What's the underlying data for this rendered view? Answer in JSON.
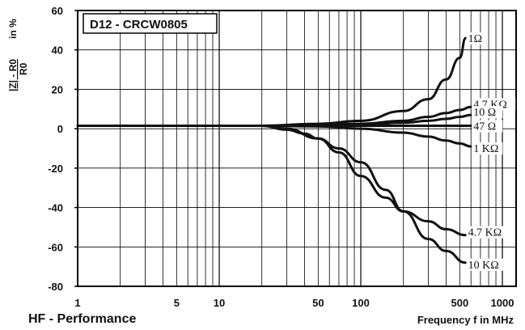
{
  "chart_data": {
    "type": "line",
    "title": "D12 - CRCW0805",
    "ylabel": "|Z| - R0 / R0 in %",
    "ylabel_numerator": "|Z| - R0",
    "ylabel_denominator": "R0",
    "ylabel_suffix": "in %",
    "xlabel": "Frequency f in MHz",
    "footer": "HF - Performance",
    "x_scale": "log",
    "xlim": [
      1,
      1250
    ],
    "ylim": [
      -80,
      60
    ],
    "grid": true,
    "x_ticks": [
      {
        "value": 1,
        "label": "1"
      },
      {
        "value": 5,
        "label": "5"
      },
      {
        "value": 10,
        "label": "10"
      },
      {
        "value": 50,
        "label": "50"
      },
      {
        "value": 100,
        "label": "100"
      },
      {
        "value": 500,
        "label": "500"
      },
      {
        "value": 1000,
        "label": "1000"
      }
    ],
    "y_ticks": [
      {
        "value": 60,
        "label": "60"
      },
      {
        "value": 40,
        "label": "40"
      },
      {
        "value": 20,
        "label": "20"
      },
      {
        "value": 0,
        "label": "0"
      },
      {
        "value": -20,
        "label": "-20"
      },
      {
        "value": -40,
        "label": "-40"
      },
      {
        "value": -60,
        "label": "-60"
      },
      {
        "value": -80,
        "label": "-80"
      }
    ],
    "series": [
      {
        "name": "1Ω",
        "x": [
          1,
          20,
          50,
          100,
          200,
          300,
          400,
          500,
          550
        ],
        "y": [
          1.5,
          1.5,
          2.5,
          4,
          9,
          15,
          25,
          36,
          46
        ]
      },
      {
        "name": "4.7 KΩ",
        "x": [
          1,
          20,
          50,
          100,
          200,
          300,
          400,
          500,
          600
        ],
        "y": [
          1.5,
          1.5,
          2,
          2.5,
          4,
          6,
          8,
          9.5,
          11
        ]
      },
      {
        "name": "10 Ω",
        "x": [
          1,
          20,
          50,
          100,
          200,
          300,
          400,
          500,
          600
        ],
        "y": [
          1.5,
          1.5,
          1.7,
          2,
          3,
          4,
          5,
          6,
          7
        ]
      },
      {
        "name": "47 Ω",
        "x": [
          1,
          20,
          50,
          100,
          200,
          300,
          400,
          500,
          600
        ],
        "y": [
          1.5,
          1.5,
          1.5,
          1.5,
          1.5,
          1.5,
          1.5,
          1.5,
          1.5
        ]
      },
      {
        "name": "1 KΩ",
        "x": [
          1,
          20,
          50,
          100,
          200,
          300,
          400,
          500,
          600
        ],
        "y": [
          1.5,
          1.5,
          1.2,
          0,
          -2,
          -4,
          -6,
          -7.5,
          -9
        ]
      },
      {
        "name": "4.7 KΩ",
        "x": [
          1,
          20,
          30,
          50,
          70,
          100,
          150,
          200,
          300,
          400,
          550
        ],
        "y": [
          1.5,
          1.5,
          0,
          -5,
          -12,
          -24,
          -35,
          -42,
          -47,
          -51,
          -54
        ]
      },
      {
        "name": "10 KΩ",
        "x": [
          1,
          20,
          30,
          40,
          50,
          70,
          100,
          150,
          200,
          300,
          400,
          550
        ],
        "y": [
          1.5,
          1.5,
          -0.5,
          -2.5,
          -5,
          -10,
          -17,
          -31,
          -42,
          -56,
          -62,
          -68
        ]
      }
    ],
    "label_offsets_y": [
      0,
      -4,
      -4,
      0,
      2,
      -4,
      2
    ]
  }
}
